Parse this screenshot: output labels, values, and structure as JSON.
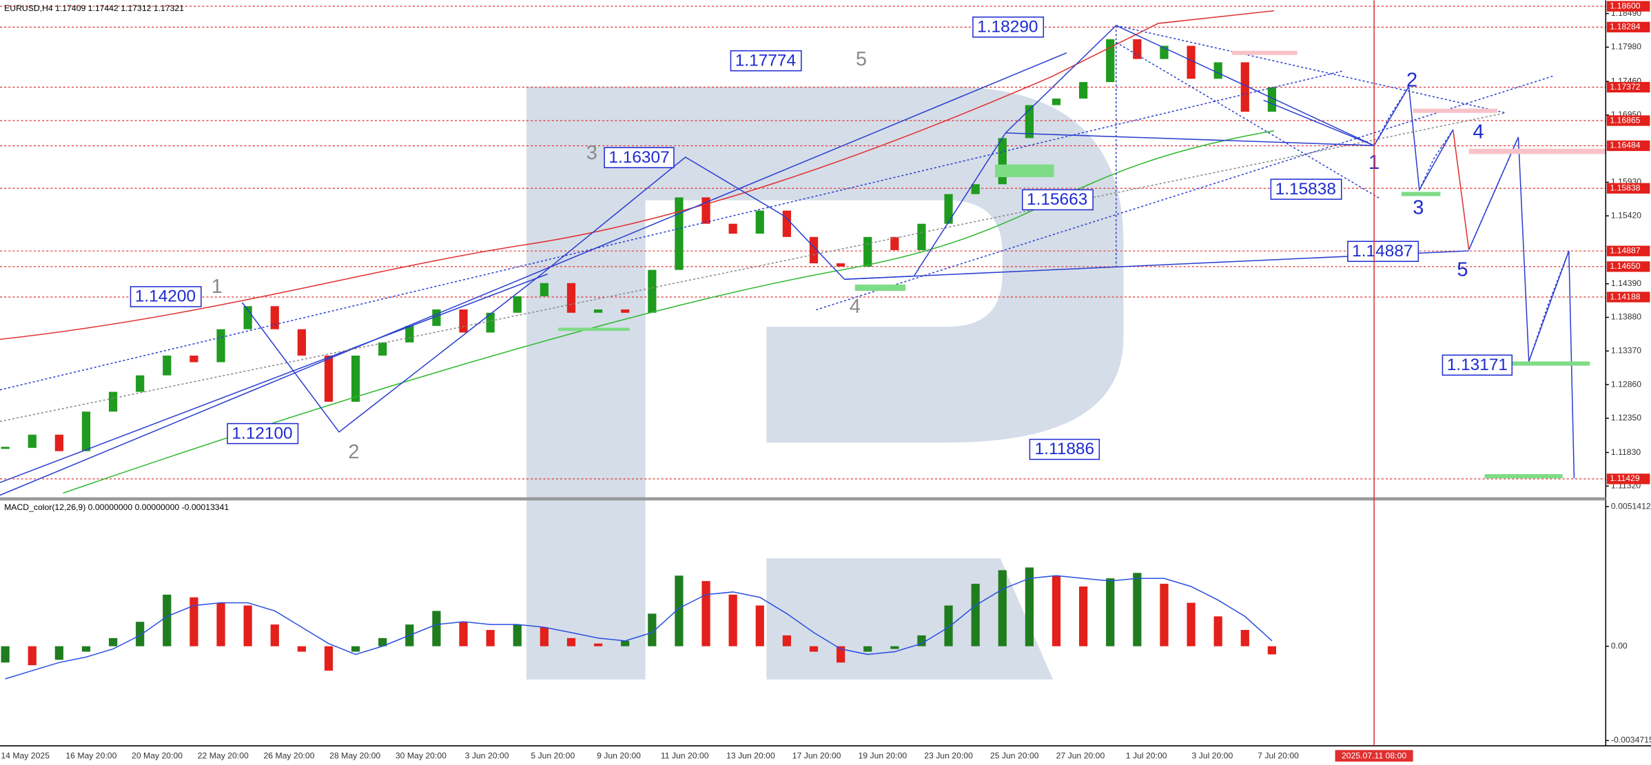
{
  "chart_data": [
    {
      "type": "candlestick",
      "title": "EURUSD,H4  1.17409 1.17442 1.17312 1.17321",
      "values": [
        1.119,
        1.121,
        1.1185,
        1.1245,
        1.1275,
        1.13,
        1.133,
        1.132,
        1.137,
        1.1405,
        1.137,
        1.133,
        1.126,
        1.133,
        1.135,
        1.1375,
        1.14,
        1.1365,
        1.1395,
        1.142,
        1.144,
        1.1395,
        1.14,
        1.1395,
        1.146,
        1.157,
        1.153,
        1.1515,
        1.155,
        1.151,
        1.147,
        1.1465,
        1.151,
        1.149,
        1.153,
        1.1575,
        1.159,
        1.166,
        1.171,
        1.172,
        1.1745,
        1.181,
        1.178,
        1.18,
        1.175,
        1.1775,
        1.17,
        1.1737
      ],
      "up_color": "#1f9b1f",
      "down_color": "#e3201b",
      "ylim": [
        1.1115,
        1.1866
      ],
      "yticks": [
        {
          "value": 1.1849,
          "label": "1.18490"
        },
        {
          "value": 1.1798,
          "label": "1.17980"
        },
        {
          "value": 1.1746,
          "label": "1.17460"
        },
        {
          "value": 1.1695,
          "label": "1.16950"
        },
        {
          "value": 1.1593,
          "label": "1.15930"
        },
        {
          "value": 1.1542,
          "label": "1.15420"
        },
        {
          "value": 1.1439,
          "label": "1.14390"
        },
        {
          "value": 1.1388,
          "label": "1.13880"
        },
        {
          "value": 1.1337,
          "label": "1.13370"
        },
        {
          "value": 1.1286,
          "label": "1.12860"
        },
        {
          "value": 1.1235,
          "label": "1.12350"
        },
        {
          "value": 1.1183,
          "label": "1.11830"
        },
        {
          "value": 1.1132,
          "label": "1.11320"
        }
      ],
      "price_labels": [
        {
          "value": 1.186,
          "label": "1.18600"
        },
        {
          "value": 1.18284,
          "label": "1.18284"
        },
        {
          "value": 1.17372,
          "label": "1.17372"
        },
        {
          "value": 1.16865,
          "label": "1.16865"
        },
        {
          "value": 1.16484,
          "label": "1.16484"
        },
        {
          "value": 1.15838,
          "label": "1.15838"
        },
        {
          "value": 1.14887,
          "label": "1.14887"
        },
        {
          "value": 1.1465,
          "label": "1.14650"
        },
        {
          "value": 1.14188,
          "label": "1.14188"
        },
        {
          "value": 1.11429,
          "label": "1.11429"
        }
      ],
      "annotations": [
        "1.18290",
        "1.17774",
        "1.16307",
        "1.15838",
        "1.15663",
        "1.14887",
        "1.14200",
        "1.13171",
        "1.12100",
        "1.11886"
      ],
      "wave_labels": [
        "5",
        "3",
        "1",
        "2",
        "4"
      ],
      "forecast_labels": [
        "1",
        "2",
        "3",
        "4",
        "5"
      ],
      "x_labels": [
        "14 May 2025",
        "16 May 20:00",
        "20 May 20:00",
        "22 May 20:00",
        "26 May 20:00",
        "28 May 20:00",
        "30 May 20:00",
        "3 Jun 20:00",
        "5 Jun 20:00",
        "9 Jun 20:00",
        "11 Jun 20:00",
        "13 Jun 20:00",
        "17 Jun 20:00",
        "19 Jun 20:00",
        "23 Jun 20:00",
        "25 Jun 20:00",
        "27 Jun 20:00",
        "1 Jul 20:00",
        "3 Jul 20:00",
        "7 Jul 20:00"
      ],
      "cursor_label": "2025.07.11 08:00"
    },
    {
      "type": "macd",
      "title": "MACD_color(12,26,9) 0.00000000 0.00000000 -0.00013341",
      "values": [
        -0.0006,
        -0.0007,
        -0.0005,
        -0.0002,
        0.0003,
        0.0009,
        0.0019,
        0.0018,
        0.0016,
        0.0015,
        0.0008,
        -0.0002,
        -0.0009,
        -0.0002,
        0.0003,
        0.0008,
        0.0013,
        0.0009,
        0.0006,
        0.0008,
        0.0007,
        0.0003,
        0.0001,
        0.0002,
        0.0012,
        0.0026,
        0.0024,
        0.0019,
        0.0015,
        0.0004,
        -0.0002,
        -0.0006,
        -0.0002,
        -0.0001,
        0.0004,
        0.0015,
        0.0023,
        0.0028,
        0.0029,
        0.0026,
        0.0022,
        0.0025,
        0.0027,
        0.0023,
        0.0016,
        0.0011,
        0.0006,
        -0.0003
      ],
      "signal": [
        -0.0012,
        -0.0009,
        -0.0006,
        -0.0004,
        -0.0001,
        0.0004,
        0.0011,
        0.0015,
        0.0016,
        0.0016,
        0.0013,
        0.0007,
        0.0001,
        -0.0003,
        0.0,
        0.0004,
        0.0008,
        0.0009,
        0.0008,
        0.0008,
        0.0007,
        0.0005,
        0.0003,
        0.0002,
        0.0005,
        0.0014,
        0.0019,
        0.002,
        0.0018,
        0.0012,
        0.0005,
        -0.0001,
        -0.0003,
        -0.0002,
        0.0001,
        0.0007,
        0.0015,
        0.0021,
        0.0025,
        0.0026,
        0.0025,
        0.0024,
        0.0025,
        0.0025,
        0.0022,
        0.0017,
        0.0011,
        0.0002
      ],
      "up_color": "#1f7d1f",
      "down_color": "#e3201b",
      "signal_color": "#2a4fe0",
      "ylim": [
        -0.00359,
        0.00533
      ],
      "yticks": [
        0.0051412,
        {
          "value": 0,
          "label": "0.00"
        },
        -0.0034715
      ]
    }
  ]
}
